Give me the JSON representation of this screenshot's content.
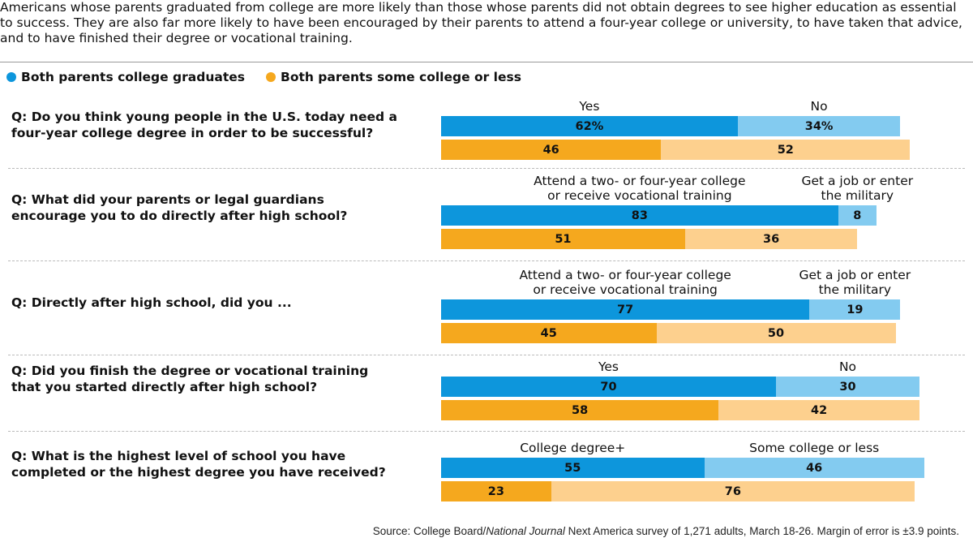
{
  "intro": "Americans whose parents graduated from college are more likely than those whose parents did not obtain degrees to see higher education as essential to success. They are also far more likely to have been encouraged by their parents to attend a four-year college or university, to have taken that advice, and to have finished their degree or vocational training.",
  "source": {
    "prefix": "Source: College Board/",
    "italic": "National Journal",
    "suffix": " Next America survey of 1,271 adults, March 18-26. Margin of error is ±3.9 points."
  },
  "colors": {
    "blue_dark": "#0d96dc",
    "blue_light": "#83cbf0",
    "orange_dark": "#f5a81e",
    "orange_light": "#fdd08e"
  },
  "chart_data": {
    "type": "bar",
    "orientation": "horizontal",
    "stacked": true,
    "legend_position": "top-left",
    "legend": [
      "Both parents college graduates",
      "Both parents some college or less"
    ],
    "xlim": [
      0,
      100
    ],
    "questions": [
      {
        "question": "Q: Do you think young people in the U.S. today need a four-year college degree in order to be successful?",
        "categories": [
          "Yes",
          "No"
        ],
        "series": [
          {
            "name": "Both parents college graduates",
            "values": [
              62,
              34
            ],
            "labels": [
              "62%",
              "34%"
            ]
          },
          {
            "name": "Both parents some college or less",
            "values": [
              46,
              52
            ],
            "labels": [
              "46",
              "52"
            ]
          }
        ]
      },
      {
        "question": "Q: What did your parents or legal guardians encourage you to do directly after high school?",
        "categories": [
          "Attend a two- or four-year college or receive vocational training",
          "Get a job or enter the military"
        ],
        "series": [
          {
            "name": "Both parents college graduates",
            "values": [
              83,
              8
            ],
            "labels": [
              "83",
              "8"
            ]
          },
          {
            "name": "Both parents some college or less",
            "values": [
              51,
              36
            ],
            "labels": [
              "51",
              "36"
            ]
          }
        ]
      },
      {
        "question": "Q: Directly after high school, did you ...",
        "categories": [
          "Attend a two- or four-year college or receive vocational training",
          "Get a job or enter the military"
        ],
        "series": [
          {
            "name": "Both parents college graduates",
            "values": [
              77,
              19
            ],
            "labels": [
              "77",
              "19"
            ]
          },
          {
            "name": "Both parents some college or less",
            "values": [
              45,
              50
            ],
            "labels": [
              "45",
              "50"
            ]
          }
        ]
      },
      {
        "question": "Q: Did you finish the degree or vocational training that you started directly after high school?",
        "categories": [
          "Yes",
          "No"
        ],
        "series": [
          {
            "name": "Both parents college graduates",
            "values": [
              70,
              30
            ],
            "labels": [
              "70",
              "30"
            ]
          },
          {
            "name": "Both parents some college or less",
            "values": [
              58,
              42
            ],
            "labels": [
              "58",
              "42"
            ]
          }
        ]
      },
      {
        "question": "Q: What is the highest level of school you have completed or the highest degree you have received?",
        "categories": [
          "College degree+",
          "Some college or less"
        ],
        "series": [
          {
            "name": "Both parents college graduates",
            "values": [
              55,
              46
            ],
            "labels": [
              "55",
              "46"
            ]
          },
          {
            "name": "Both parents some college or less",
            "values": [
              23,
              76
            ],
            "labels": [
              "23",
              "76"
            ]
          }
        ]
      }
    ]
  }
}
